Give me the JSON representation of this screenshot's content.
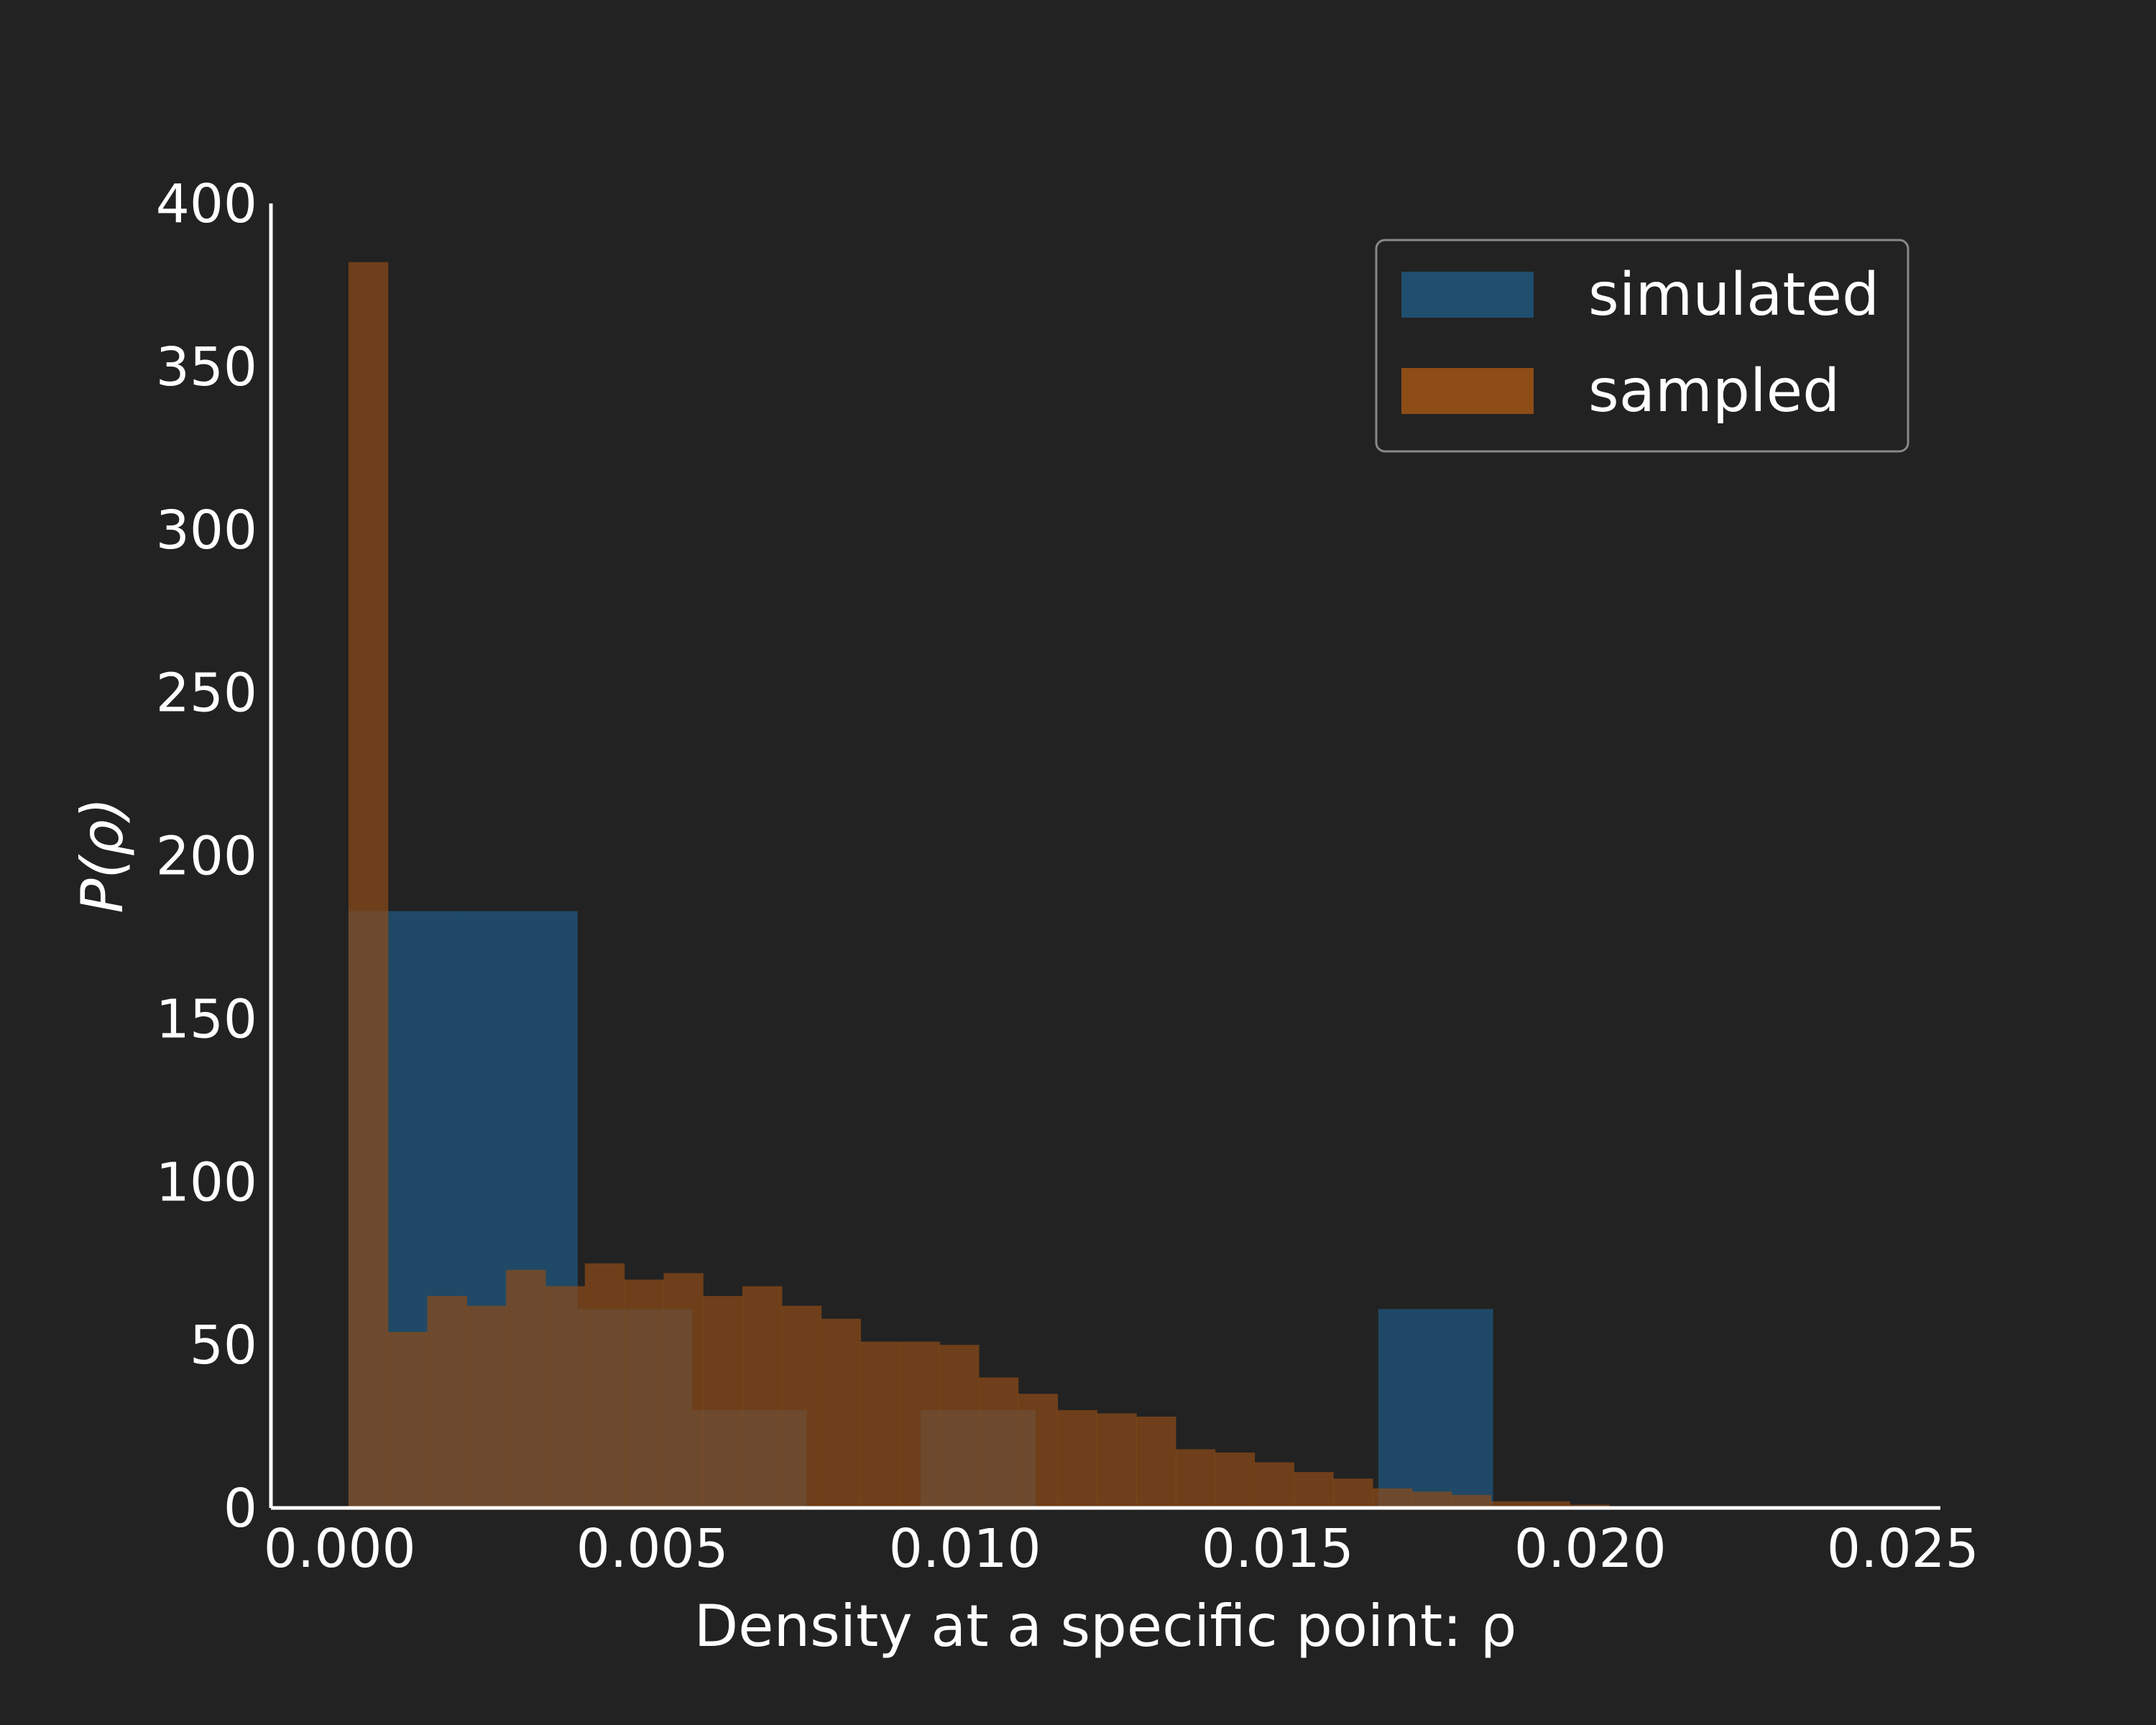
{
  "chart_data": {
    "type": "bar",
    "title": "",
    "xlabel": "Density at a specific point: ρ",
    "ylabel": "P(ρ)",
    "xlim": [
      -0.0011,
      0.0256
    ],
    "ylim": [
      0,
      400
    ],
    "x_ticks": [
      "0.000",
      "0.005",
      "0.010",
      "0.015",
      "0.020",
      "0.025"
    ],
    "y_ticks": [
      "0",
      "50",
      "100",
      "150",
      "200",
      "250",
      "300",
      "350",
      "400"
    ],
    "grid": false,
    "legend": {
      "position": "top-right"
    },
    "series": [
      {
        "name": "simulated",
        "color": "#1f4e6e",
        "bins": [
          {
            "x0": 0.00014,
            "x1": 0.00197,
            "value": 183
          },
          {
            "x0": 0.00197,
            "x1": 0.0038,
            "value": 183
          },
          {
            "x0": 0.0038,
            "x1": 0.00563,
            "value": 61
          },
          {
            "x0": 0.00563,
            "x1": 0.00746,
            "value": 30
          },
          {
            "x0": 0.00746,
            "x1": 0.00929,
            "value": 0
          },
          {
            "x0": 0.00929,
            "x1": 0.01112,
            "value": 30
          },
          {
            "x0": 0.01112,
            "x1": 0.01295,
            "value": 0
          },
          {
            "x0": 0.01295,
            "x1": 0.01478,
            "value": 0
          },
          {
            "x0": 0.01478,
            "x1": 0.01661,
            "value": 0
          },
          {
            "x0": 0.01661,
            "x1": 0.01844,
            "value": 61
          }
        ]
      },
      {
        "name": "sampled",
        "color": "#8e4c17",
        "bins": [
          {
            "x0": 0.00014,
            "x1": 0.00077,
            "value": 382
          },
          {
            "x0": 0.00077,
            "x1": 0.0014,
            "value": 54
          },
          {
            "x0": 0.0014,
            "x1": 0.00203,
            "value": 65
          },
          {
            "x0": 0.00203,
            "x1": 0.00266,
            "value": 62
          },
          {
            "x0": 0.00266,
            "x1": 0.00329,
            "value": 73
          },
          {
            "x0": 0.00329,
            "x1": 0.00392,
            "value": 68
          },
          {
            "x0": 0.00392,
            "x1": 0.00455,
            "value": 75
          },
          {
            "x0": 0.00455,
            "x1": 0.00518,
            "value": 70
          },
          {
            "x0": 0.00518,
            "x1": 0.00581,
            "value": 72
          },
          {
            "x0": 0.00581,
            "x1": 0.00644,
            "value": 65
          },
          {
            "x0": 0.00644,
            "x1": 0.00707,
            "value": 68
          },
          {
            "x0": 0.00707,
            "x1": 0.0077,
            "value": 62
          },
          {
            "x0": 0.0077,
            "x1": 0.00833,
            "value": 58
          },
          {
            "x0": 0.00833,
            "x1": 0.00896,
            "value": 51
          },
          {
            "x0": 0.00896,
            "x1": 0.00959,
            "value": 51
          },
          {
            "x0": 0.00959,
            "x1": 0.01022,
            "value": 50
          },
          {
            "x0": 0.01022,
            "x1": 0.01085,
            "value": 40
          },
          {
            "x0": 0.01085,
            "x1": 0.01148,
            "value": 35
          },
          {
            "x0": 0.01148,
            "x1": 0.01211,
            "value": 30
          },
          {
            "x0": 0.01211,
            "x1": 0.01274,
            "value": 29
          },
          {
            "x0": 0.01274,
            "x1": 0.01337,
            "value": 28
          },
          {
            "x0": 0.01337,
            "x1": 0.014,
            "value": 18
          },
          {
            "x0": 0.014,
            "x1": 0.01463,
            "value": 17
          },
          {
            "x0": 0.01463,
            "x1": 0.01526,
            "value": 14
          },
          {
            "x0": 0.01526,
            "x1": 0.01589,
            "value": 11
          },
          {
            "x0": 0.01589,
            "x1": 0.01652,
            "value": 9
          },
          {
            "x0": 0.01652,
            "x1": 0.01715,
            "value": 6
          },
          {
            "x0": 0.01715,
            "x1": 0.01778,
            "value": 5
          },
          {
            "x0": 0.01778,
            "x1": 0.01841,
            "value": 4
          },
          {
            "x0": 0.01841,
            "x1": 0.01904,
            "value": 2
          },
          {
            "x0": 0.01904,
            "x1": 0.01967,
            "value": 2
          },
          {
            "x0": 0.01967,
            "x1": 0.0203,
            "value": 1
          },
          {
            "x0": 0.0203,
            "x1": 0.02093,
            "value": 0.5
          },
          {
            "x0": 0.02093,
            "x1": 0.02156,
            "value": 0.3
          }
        ]
      }
    ]
  }
}
